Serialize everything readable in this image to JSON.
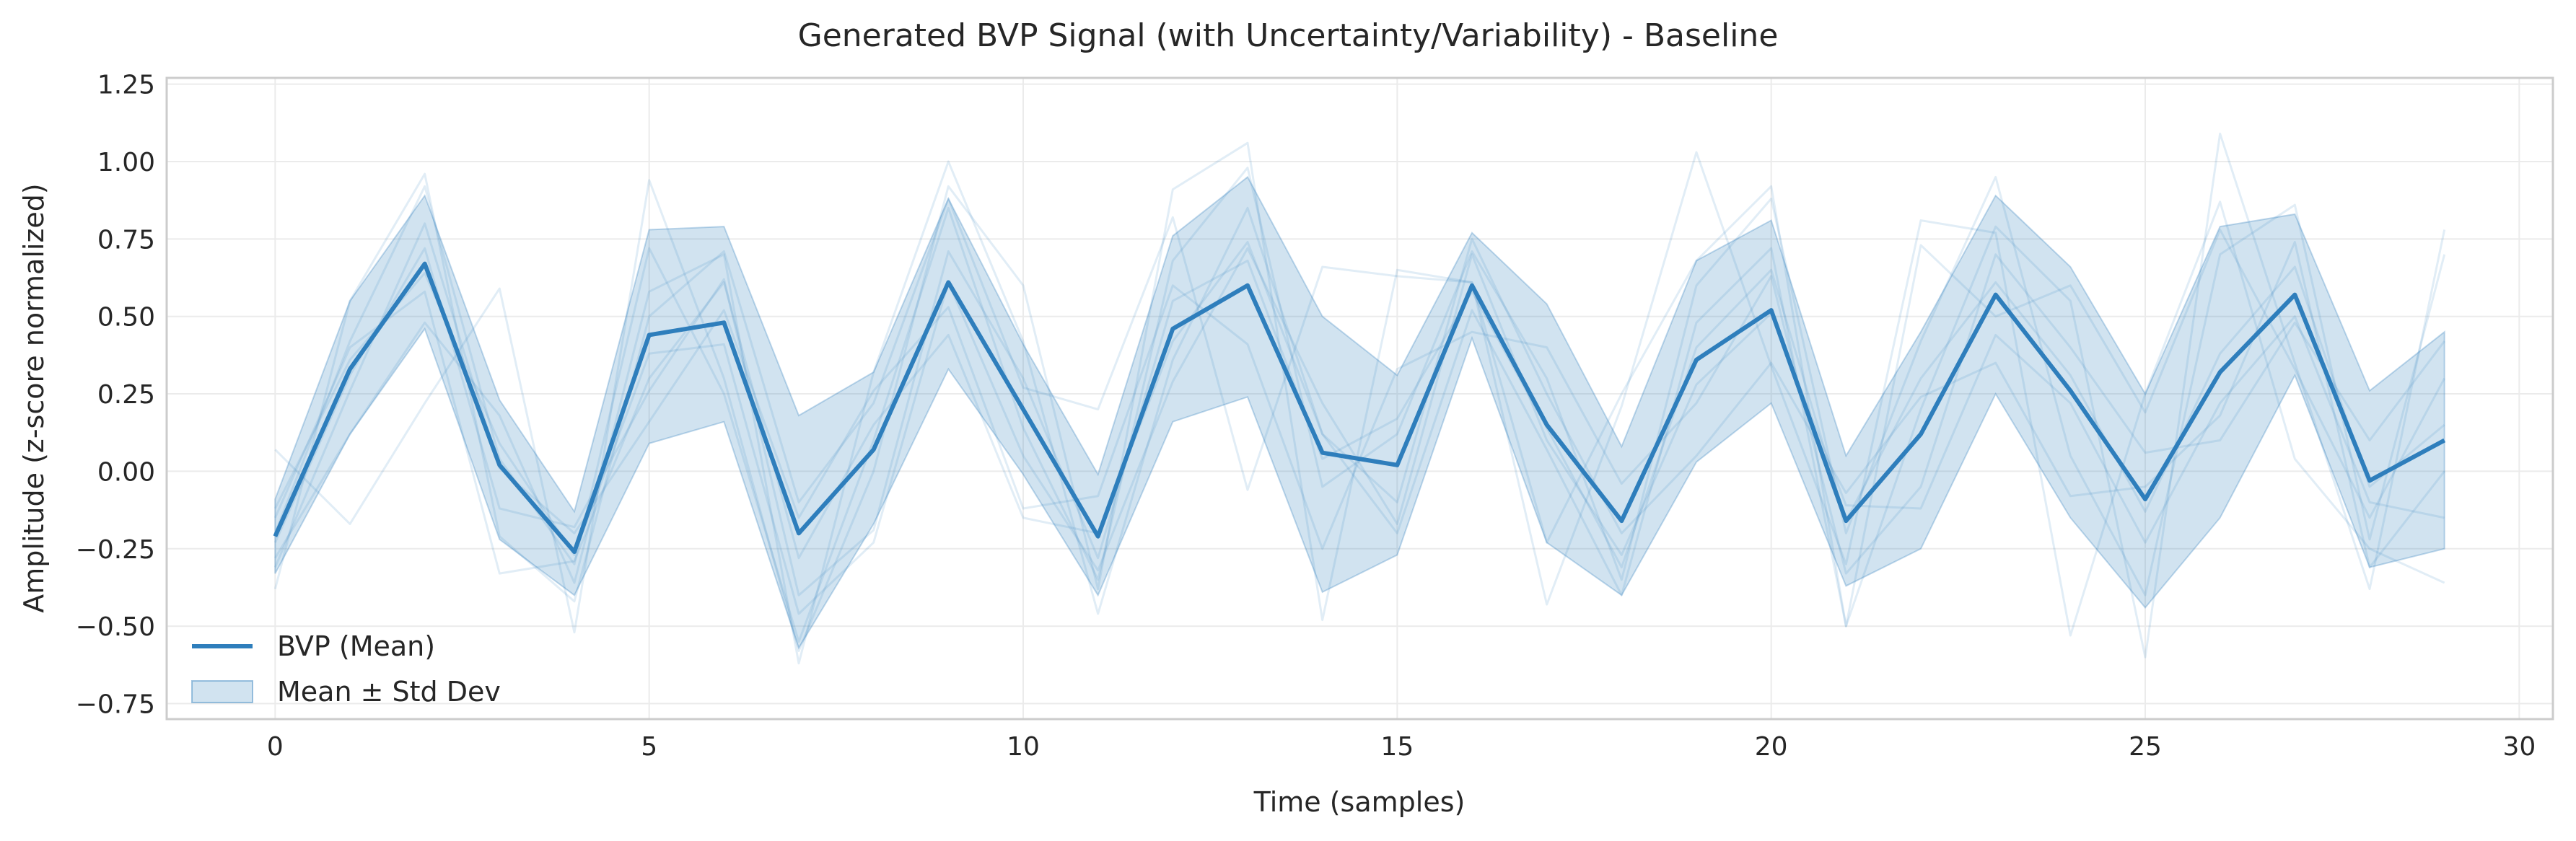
{
  "chart_data": {
    "type": "line",
    "title": "Generated BVP Signal (with Uncertainty/Variability) - Baseline",
    "xlabel": "Time (samples)",
    "ylabel": "Amplitude (z-score normalized)",
    "xlim": [
      -1.45,
      30.45
    ],
    "ylim": [
      -0.8,
      1.27
    ],
    "xticks": [
      0,
      5,
      10,
      15,
      20,
      25,
      30
    ],
    "yticks": [
      -0.75,
      -0.5,
      -0.25,
      0.0,
      0.25,
      0.5,
      0.75,
      1.0,
      1.25
    ],
    "ytick_labels": [
      "−0.75",
      "−0.50",
      "−0.25",
      "0.00",
      "0.25",
      "0.50",
      "0.75",
      "1.00",
      "1.25"
    ],
    "grid": true,
    "legend_position": "lower-left",
    "x": [
      0,
      1,
      2,
      3,
      4,
      5,
      6,
      7,
      8,
      9,
      10,
      11,
      12,
      13,
      14,
      15,
      16,
      17,
      18,
      19,
      20,
      21,
      22,
      23,
      24,
      25,
      26,
      27,
      28,
      29
    ],
    "series": [
      {
        "name": "BVP (Mean)",
        "type": "line",
        "color": "#2e7ebc",
        "values": [
          -0.21,
          0.33,
          0.67,
          0.02,
          -0.26,
          0.44,
          0.48,
          -0.2,
          0.07,
          0.61,
          0.2,
          -0.21,
          0.46,
          0.6,
          0.06,
          0.02,
          0.6,
          0.15,
          -0.16,
          0.36,
          0.52,
          -0.16,
          0.12,
          0.57,
          0.26,
          -0.09,
          0.32,
          0.57,
          -0.03,
          0.1
        ]
      },
      {
        "name": "Mean ± Std Dev",
        "type": "band",
        "color": "#2e7ebc",
        "upper": [
          -0.09,
          0.55,
          0.89,
          0.23,
          -0.13,
          0.78,
          0.79,
          0.18,
          0.32,
          0.88,
          0.41,
          -0.01,
          0.76,
          0.95,
          0.5,
          0.31,
          0.77,
          0.54,
          0.08,
          0.68,
          0.81,
          0.05,
          0.45,
          0.89,
          0.66,
          0.25,
          0.79,
          0.83,
          0.26,
          0.45
        ],
        "lower": [
          -0.33,
          0.12,
          0.46,
          -0.22,
          -0.4,
          0.09,
          0.16,
          -0.57,
          -0.17,
          0.33,
          -0.01,
          -0.4,
          0.16,
          0.24,
          -0.39,
          -0.27,
          0.43,
          -0.23,
          -0.4,
          0.03,
          0.22,
          -0.37,
          -0.25,
          0.25,
          -0.15,
          -0.44,
          -0.15,
          0.31,
          -0.31,
          -0.25
        ]
      }
    ],
    "samples": [
      [
        -0.2,
        0.42,
        0.92,
        0.04,
        -0.3,
        0.72,
        0.25,
        -0.55,
        0.1,
        0.85,
        0.14,
        -0.35,
        0.68,
        0.98,
        -0.05,
        0.12,
        0.71,
        0.3,
        -0.35,
        0.6,
        0.88,
        -0.2,
        0.42,
        0.95,
        0.05,
        -0.4,
        0.7,
        0.86,
        -0.22,
        0.7
      ],
      [
        -0.28,
        0.12,
        0.48,
        0.18,
        -0.36,
        0.58,
        0.7,
        -0.62,
        0.32,
        1.0,
        0.42,
        -0.46,
        0.36,
        0.85,
        0.12,
        -0.2,
        0.52,
        0.07,
        -0.4,
        0.48,
        0.72,
        -0.5,
        0.2,
        0.79,
        0.55,
        -0.6,
        1.09,
        0.35,
        -0.38,
        0.78
      ],
      [
        0.07,
        -0.17,
        0.22,
        0.59,
        -0.52,
        0.94,
        0.3,
        -0.58,
        0.0,
        0.92,
        0.6,
        -0.38,
        0.91,
        1.06,
        -0.48,
        0.65,
        0.61,
        -0.43,
        0.21,
        1.03,
        0.34,
        -0.3,
        0.81,
        0.77,
        -0.53,
        0.25,
        0.87,
        0.04,
        -0.25,
        -0.36
      ],
      [
        -0.38,
        0.55,
        0.96,
        -0.21,
        -0.42,
        0.5,
        0.71,
        -0.1,
        0.22,
        0.88,
        0.27,
        0.2,
        0.82,
        -0.06,
        0.66,
        0.63,
        0.61,
        -0.23,
        0.25,
        0.68,
        0.92,
        -0.5,
        0.73,
        0.5,
        0.6,
        0.19,
        0.78,
        0.33,
        -0.15,
        0.3
      ],
      [
        -0.15,
        0.4,
        0.58,
        -0.33,
        -0.29,
        0.3,
        0.61,
        -0.28,
        0.15,
        0.44,
        -0.15,
        -0.2,
        0.42,
        0.74,
        0.12,
        -0.1,
        0.75,
        0.25,
        -0.2,
        0.05,
        0.35,
        -0.07,
        0.24,
        0.35,
        -0.08,
        -0.05,
        0.18,
        0.74,
        -0.31,
        0.0
      ],
      [
        -0.23,
        0.31,
        0.72,
        -0.12,
        -0.18,
        0.26,
        0.62,
        -0.4,
        -0.19,
        0.71,
        0.3,
        -0.28,
        0.55,
        0.68,
        0.04,
        0.17,
        0.58,
        0.14,
        -0.31,
        0.4,
        0.65,
        -0.16,
        0.3,
        0.61,
        0.31,
        -0.13,
        0.38,
        0.66,
        -0.05,
        0.15
      ],
      [
        -0.12,
        0.36,
        0.64,
        0.09,
        -0.27,
        0.38,
        0.41,
        -0.46,
        -0.23,
        0.61,
        0.05,
        -0.32,
        0.29,
        0.72,
        0.22,
        -0.17,
        0.7,
        0.1,
        -0.27,
        0.28,
        0.51,
        -0.11,
        -0.12,
        0.44,
        0.22,
        -0.23,
        0.22,
        0.5,
        -0.1,
        -0.15
      ],
      [
        -0.31,
        0.26,
        0.8,
        0.01,
        -0.2,
        0.16,
        0.52,
        -0.15,
        0.26,
        0.53,
        -0.12,
        -0.08,
        0.6,
        0.41,
        -0.25,
        0.33,
        0.45,
        0.4,
        -0.04,
        0.22,
        0.63,
        -0.33,
        -0.05,
        0.7,
        0.4,
        0.06,
        0.1,
        0.48,
        0.1,
        0.42
      ]
    ]
  }
}
